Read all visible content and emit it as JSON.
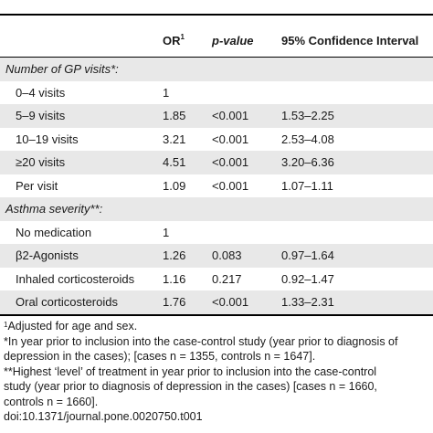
{
  "columns": [
    "",
    "OR",
    "p-value",
    "95% Confidence Interval"
  ],
  "or_sup": "1",
  "rows": [
    {
      "type": "section",
      "label": "Number of GP visits*:"
    },
    {
      "type": "row",
      "label": "0–4 visits",
      "or": "1",
      "p": "",
      "ci": ""
    },
    {
      "type": "row",
      "label": "5–9 visits",
      "or": "1.85",
      "p": "<0.001",
      "ci": "1.53–2.25"
    },
    {
      "type": "row",
      "label": "10–19 visits",
      "or": "3.21",
      "p": "<0.001",
      "ci": "2.53–4.08"
    },
    {
      "type": "row",
      "label": "≥20 visits",
      "or": "4.51",
      "p": "<0.001",
      "ci": "3.20–6.36"
    },
    {
      "type": "row",
      "label": "Per visit",
      "or": "1.09",
      "p": "<0.001",
      "ci": "1.07–1.11"
    },
    {
      "type": "section",
      "label": "Asthma severity**:"
    },
    {
      "type": "row",
      "label": "No medication",
      "or": "1",
      "p": "",
      "ci": ""
    },
    {
      "type": "row",
      "label": "β2-Agonists",
      "or": "1.26",
      "p": "0.083",
      "ci": "0.97–1.64"
    },
    {
      "type": "row",
      "label": "Inhaled corticosteroids",
      "or": "1.16",
      "p": "0.217",
      "ci": "0.92–1.47"
    },
    {
      "type": "row",
      "label": "Oral corticosteroids",
      "or": "1.76",
      "p": "<0.001",
      "ci": "1.33–2.31"
    }
  ],
  "footnotes": {
    "sup": "1",
    "adjusted": "Adjusted for age and sex.",
    "star_1": "*In year prior to inclusion into the case-control study (year prior to diagnosis of",
    "star_2": "depression in the cases); [cases n = 1355, controls n = 1647].",
    "dstar_1": "**Highest ‘level’ of treatment in year prior to inclusion into the case-control",
    "dstar_2": "study (year prior to diagnosis of depression in the cases) [cases n = 1660,",
    "dstar_3": "controls n = 1660].",
    "doi": "doi:10.1371/journal.pone.0020750.t001"
  }
}
